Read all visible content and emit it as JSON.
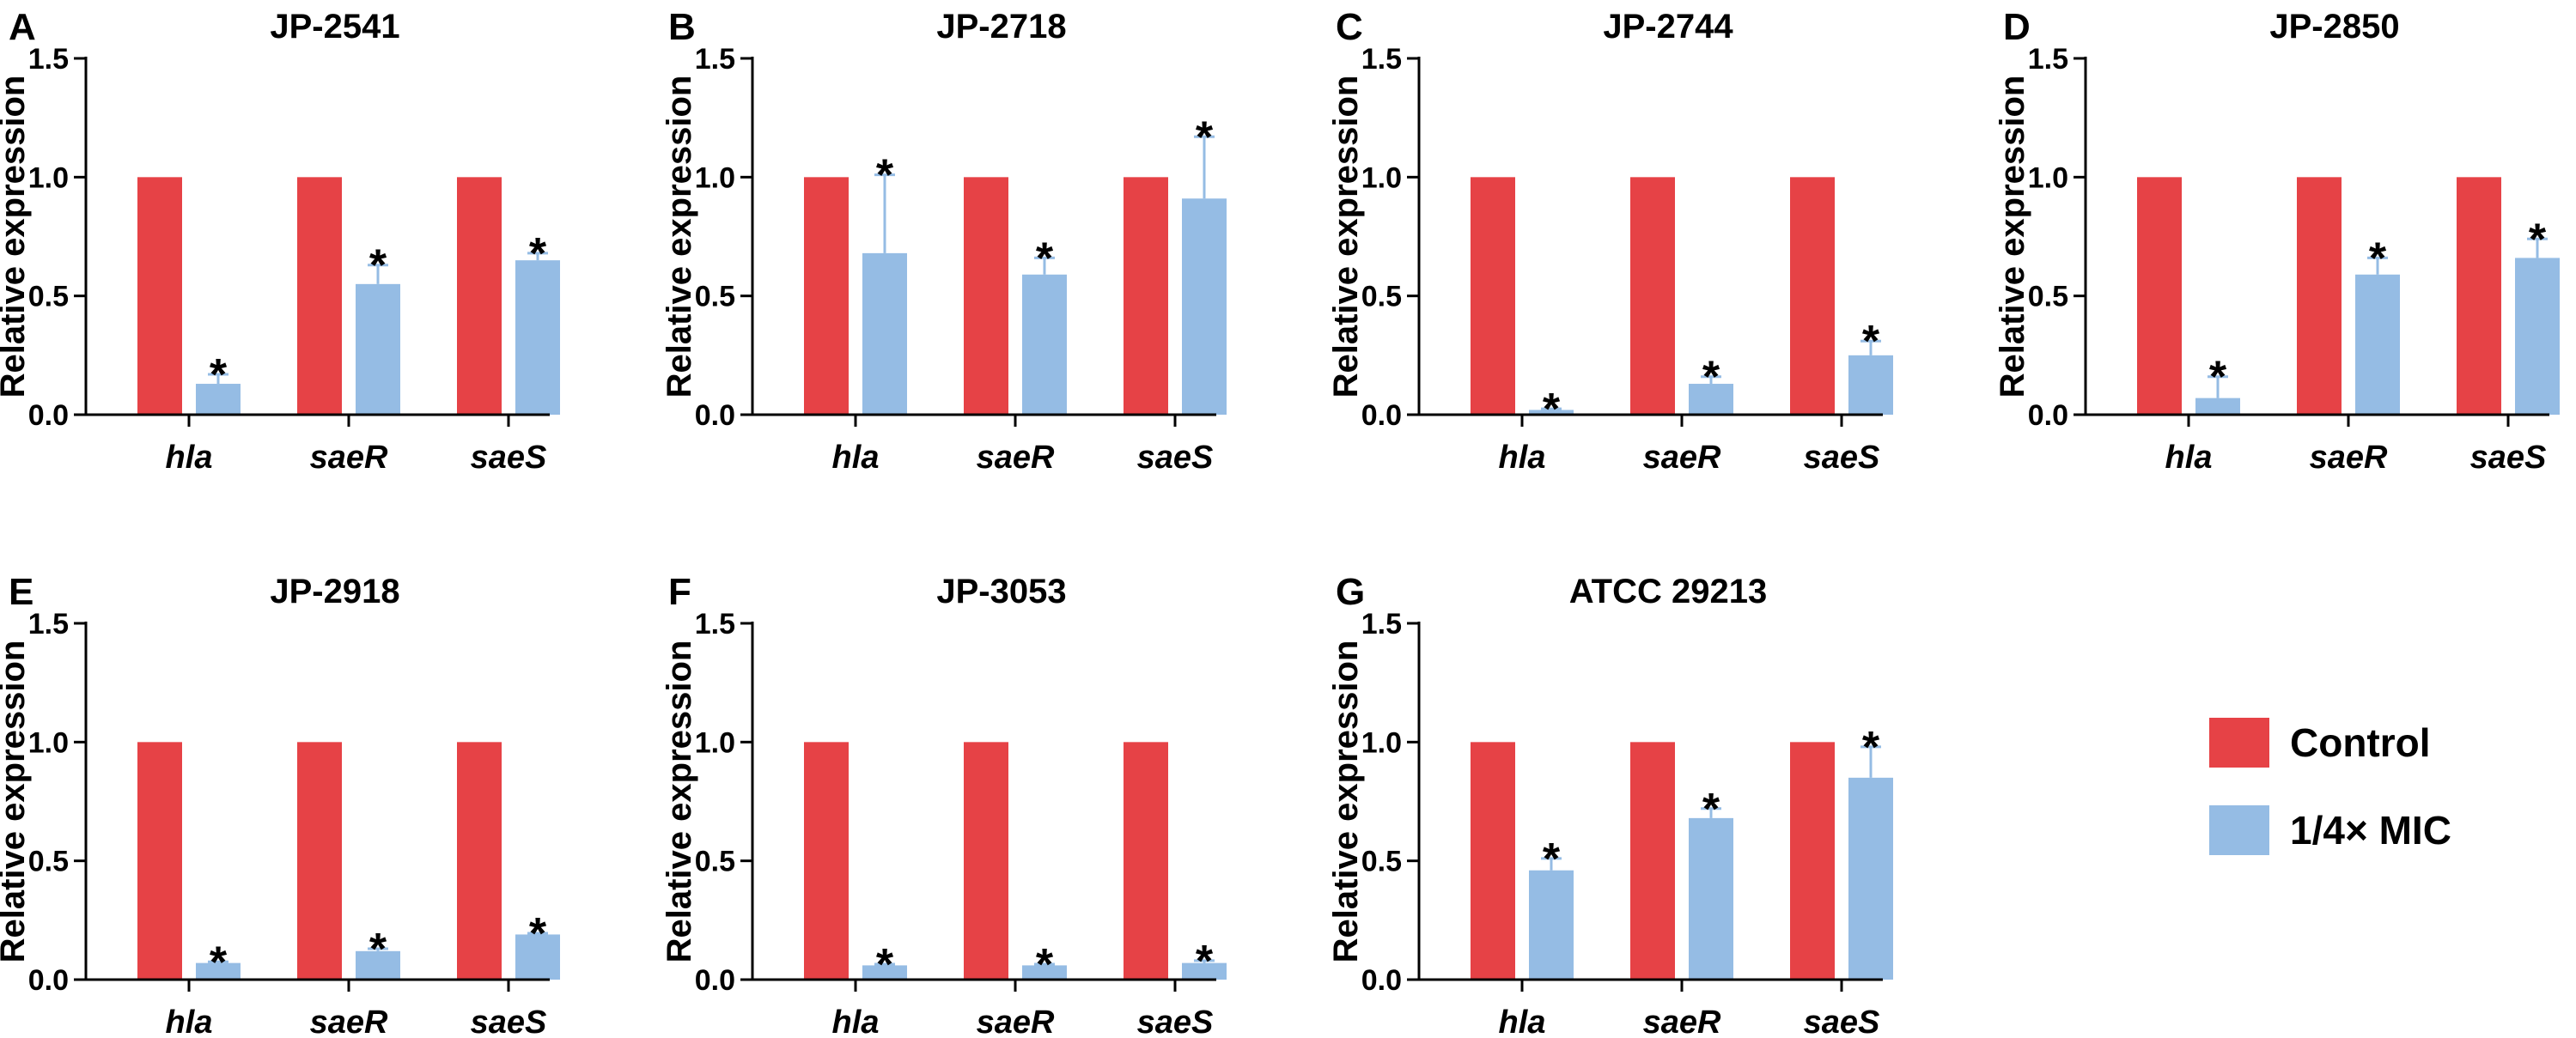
{
  "colors": {
    "control": "#e64246",
    "treatment": "#95bce4",
    "axis": "#000000",
    "errorbar": "#95bce4"
  },
  "legend": {
    "items": [
      {
        "label": "Control",
        "color_key": "control"
      },
      {
        "label": "1/4× MIC",
        "color_key": "treatment"
      }
    ]
  },
  "chart_data": [
    {
      "letter": "A",
      "title": "JP-2541",
      "type": "bar",
      "ylabel": "Relative expression",
      "ylim": [
        0,
        1.5
      ],
      "yticks": [
        "0.0",
        "0.5",
        "1.0",
        "1.5"
      ],
      "categories": [
        "hla",
        "saeR",
        "saeS"
      ],
      "series": [
        {
          "name": "Control",
          "values": [
            1.0,
            1.0,
            1.0
          ]
        },
        {
          "name": "1/4× MIC",
          "values": [
            0.13,
            0.55,
            0.65
          ],
          "errors": [
            0.04,
            0.08,
            0.03
          ],
          "significance": [
            "*",
            "*",
            "*"
          ]
        }
      ]
    },
    {
      "letter": "B",
      "title": "JP-2718",
      "type": "bar",
      "ylabel": "Relative expression",
      "ylim": [
        0,
        1.5
      ],
      "yticks": [
        "0.0",
        "0.5",
        "1.0",
        "1.5"
      ],
      "categories": [
        "hla",
        "saeR",
        "saeS"
      ],
      "series": [
        {
          "name": "Control",
          "values": [
            1.0,
            1.0,
            1.0
          ]
        },
        {
          "name": "1/4× MIC",
          "values": [
            0.68,
            0.59,
            0.91
          ],
          "errors": [
            0.33,
            0.07,
            0.26
          ],
          "significance": [
            "*",
            "*",
            "*"
          ]
        }
      ]
    },
    {
      "letter": "C",
      "title": "JP-2744",
      "type": "bar",
      "ylabel": "Relative expression",
      "ylim": [
        0,
        1.5
      ],
      "yticks": [
        "0.0",
        "0.5",
        "1.0",
        "1.5"
      ],
      "categories": [
        "hla",
        "saeR",
        "saeS"
      ],
      "series": [
        {
          "name": "Control",
          "values": [
            1.0,
            1.0,
            1.0
          ]
        },
        {
          "name": "1/4× MIC",
          "values": [
            0.02,
            0.13,
            0.25
          ],
          "errors": [
            0.005,
            0.03,
            0.06
          ],
          "significance": [
            "*",
            "*",
            "*"
          ]
        }
      ]
    },
    {
      "letter": "D",
      "title": "JP-2850",
      "type": "bar",
      "ylabel": "Relative expression",
      "ylim": [
        0,
        1.5
      ],
      "yticks": [
        "0.0",
        "0.5",
        "1.0",
        "1.5"
      ],
      "categories": [
        "hla",
        "saeR",
        "saeS"
      ],
      "series": [
        {
          "name": "Control",
          "values": [
            1.0,
            1.0,
            1.0
          ]
        },
        {
          "name": "1/4× MIC",
          "values": [
            0.07,
            0.59,
            0.66
          ],
          "errors": [
            0.09,
            0.07,
            0.08
          ],
          "significance": [
            "*",
            "*",
            "*"
          ]
        }
      ]
    },
    {
      "letter": "E",
      "title": "JP-2918",
      "type": "bar",
      "ylabel": "Relative expression",
      "ylim": [
        0,
        1.5
      ],
      "yticks": [
        "0.0",
        "0.5",
        "1.0",
        "1.5"
      ],
      "categories": [
        "hla",
        "saeR",
        "saeS"
      ],
      "series": [
        {
          "name": "Control",
          "values": [
            1.0,
            1.0,
            1.0
          ]
        },
        {
          "name": "1/4× MIC",
          "values": [
            0.07,
            0.12,
            0.19
          ],
          "errors": [
            0.005,
            0.01,
            0.005
          ],
          "significance": [
            "*",
            "*",
            "*"
          ]
        }
      ]
    },
    {
      "letter": "F",
      "title": "JP-3053",
      "type": "bar",
      "ylabel": "Relative expression",
      "ylim": [
        0,
        1.5
      ],
      "yticks": [
        "0.0",
        "0.5",
        "1.0",
        "1.5"
      ],
      "categories": [
        "hla",
        "saeR",
        "saeS"
      ],
      "series": [
        {
          "name": "Control",
          "values": [
            1.0,
            1.0,
            1.0
          ]
        },
        {
          "name": "1/4× MIC",
          "values": [
            0.06,
            0.06,
            0.07
          ],
          "errors": [
            0.005,
            0.005,
            0.01
          ],
          "significance": [
            "*",
            "*",
            "*"
          ]
        }
      ]
    },
    {
      "letter": "G",
      "title": "ATCC 29213",
      "type": "bar",
      "ylabel": "Relative expression",
      "ylim": [
        0,
        1.5
      ],
      "yticks": [
        "0.0",
        "0.5",
        "1.0",
        "1.5"
      ],
      "categories": [
        "hla",
        "saeR",
        "saeS"
      ],
      "series": [
        {
          "name": "Control",
          "values": [
            1.0,
            1.0,
            1.0
          ]
        },
        {
          "name": "1/4× MIC",
          "values": [
            0.46,
            0.68,
            0.85
          ],
          "errors": [
            0.05,
            0.04,
            0.13
          ],
          "significance": [
            "*",
            "*",
            "*"
          ]
        }
      ]
    }
  ]
}
